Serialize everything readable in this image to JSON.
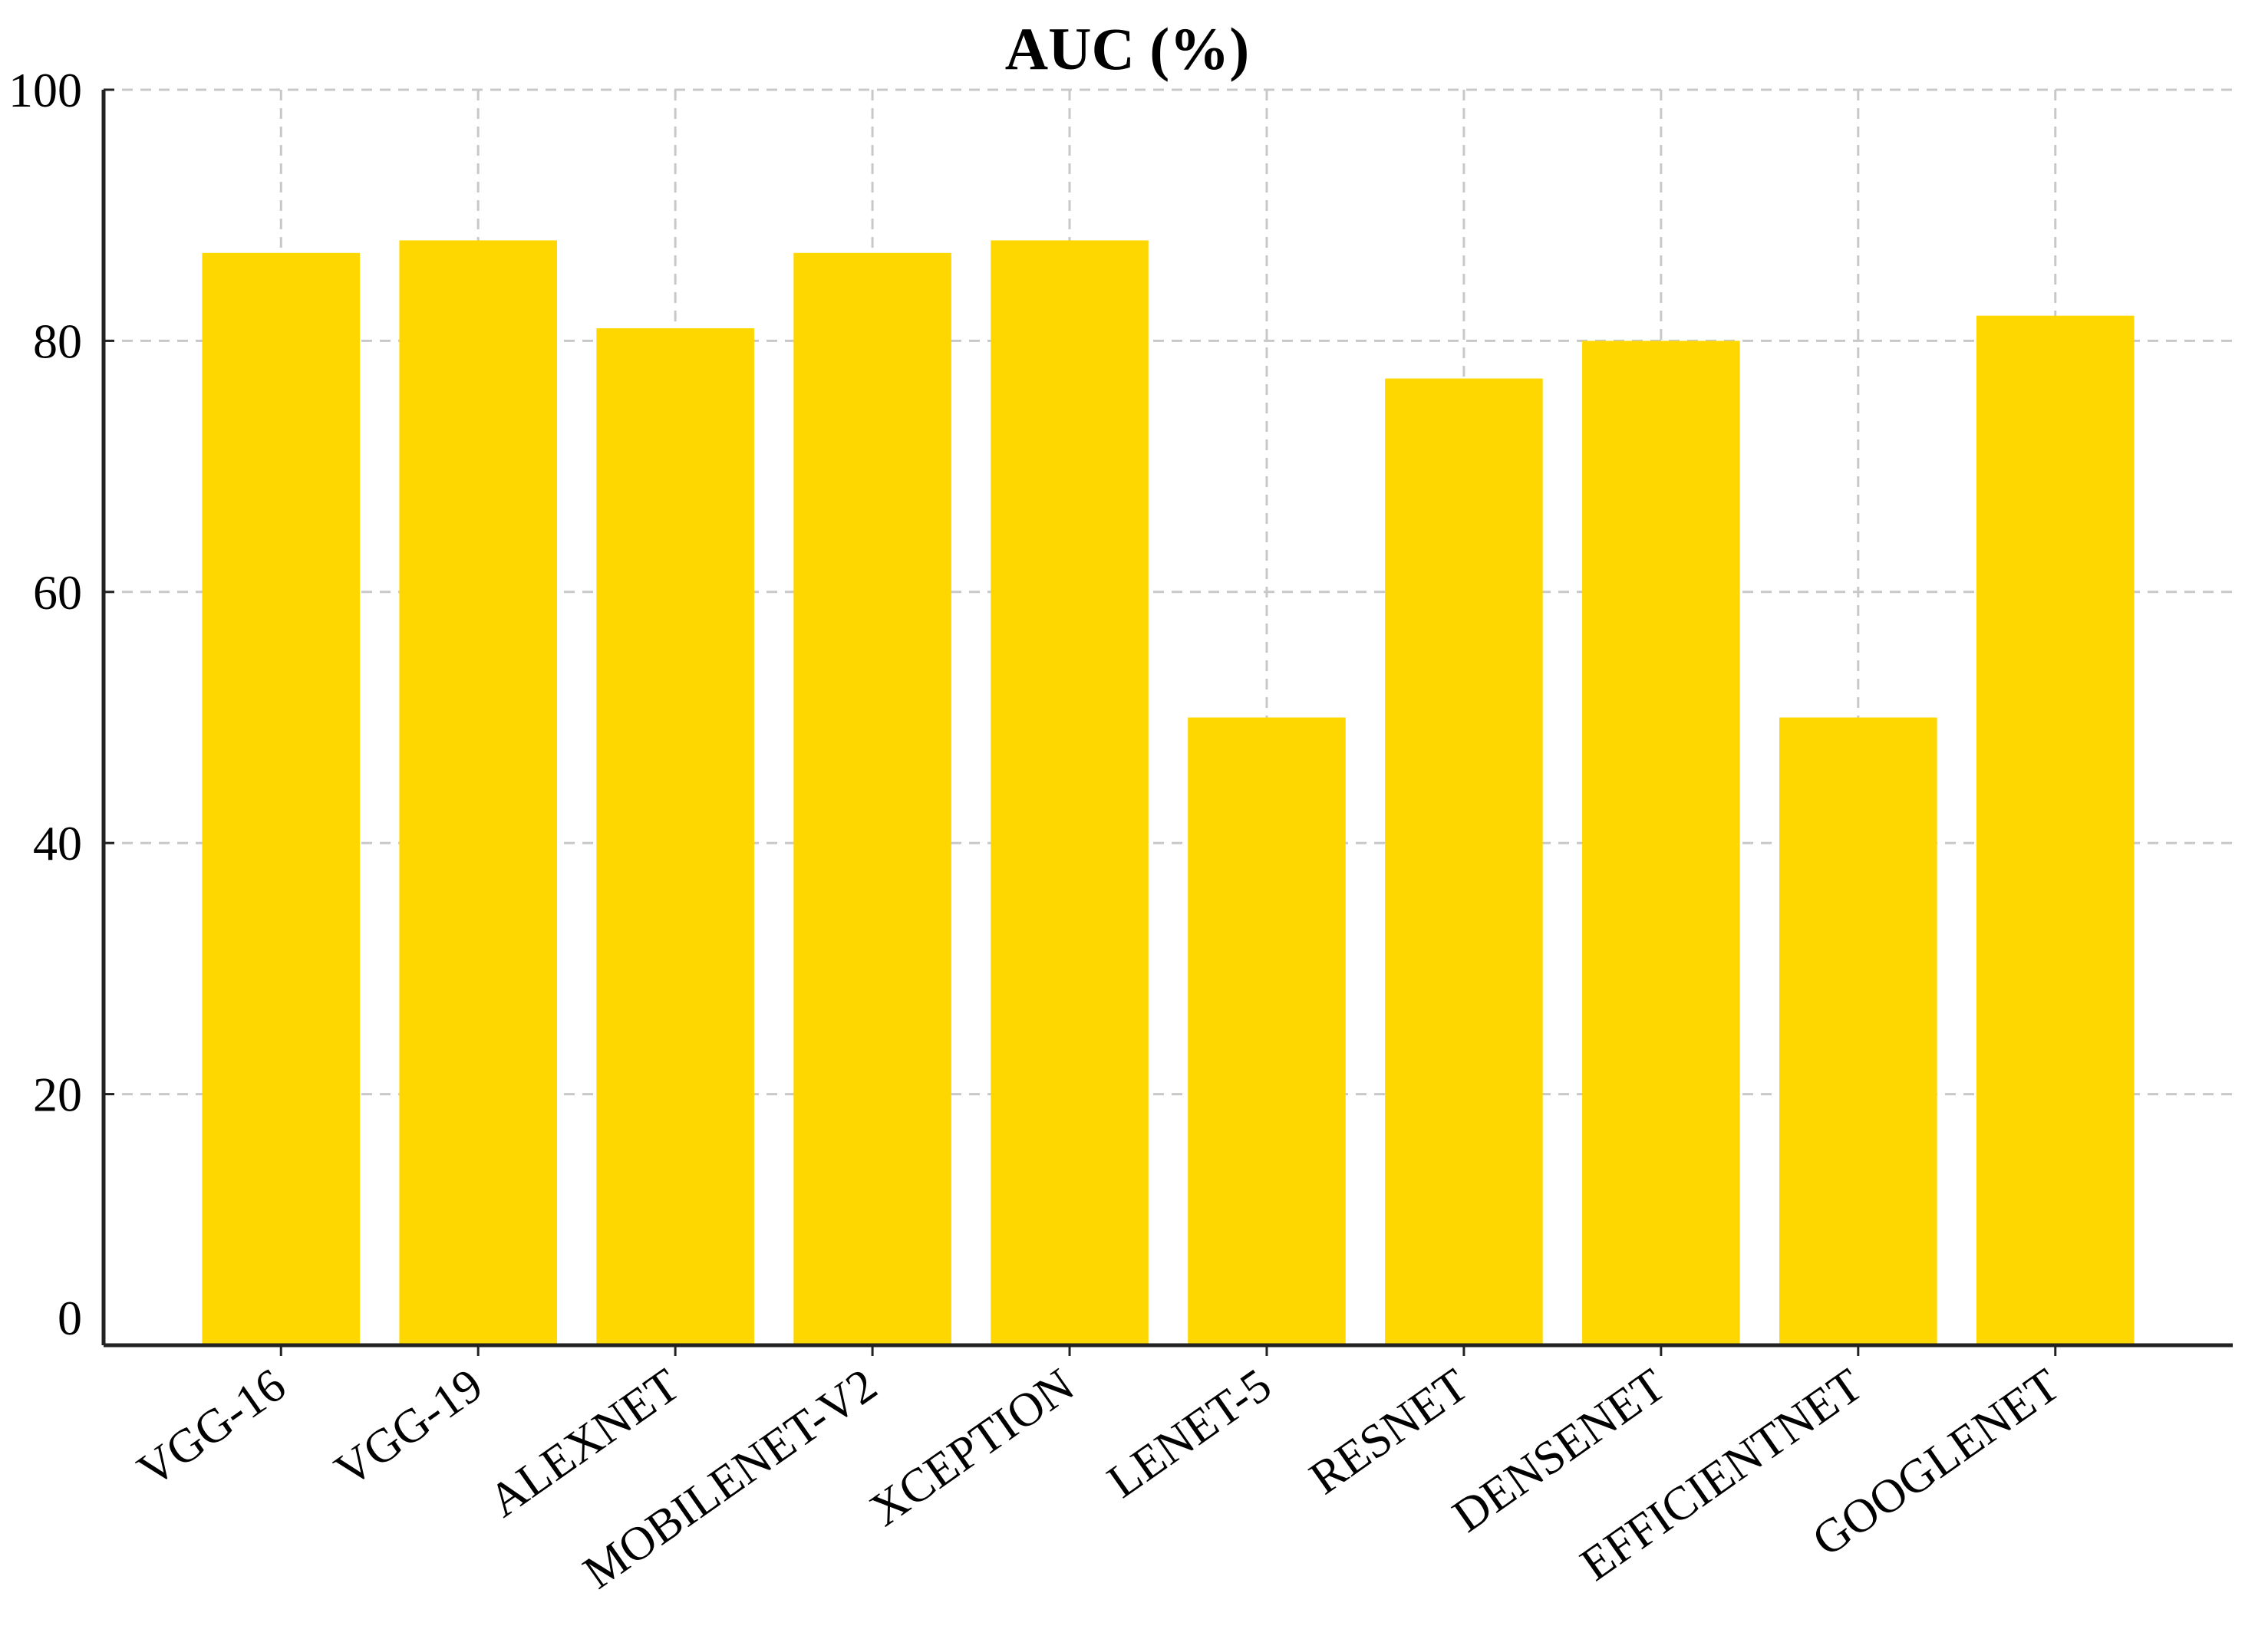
{
  "chart_data": {
    "type": "bar",
    "title": "AUC (%)",
    "xlabel": "",
    "ylabel": "",
    "categories": [
      "VGG-16",
      "VGG-19",
      "ALEXNET",
      "MOBILENET-V2",
      "XCEPTION",
      "LENET-5",
      "RESNET",
      "DENSENET",
      "EFFICIENTNET",
      "GOOGLENET"
    ],
    "values": [
      87,
      88,
      81,
      87,
      88,
      50,
      77,
      80,
      50,
      82
    ],
    "ylim": [
      0,
      100
    ],
    "yticks": [
      0,
      20,
      40,
      60,
      80,
      100
    ],
    "grid": true,
    "bar_color": "#FFD700",
    "axis_color": "#222222",
    "grid_color": "#c8c8c8"
  }
}
